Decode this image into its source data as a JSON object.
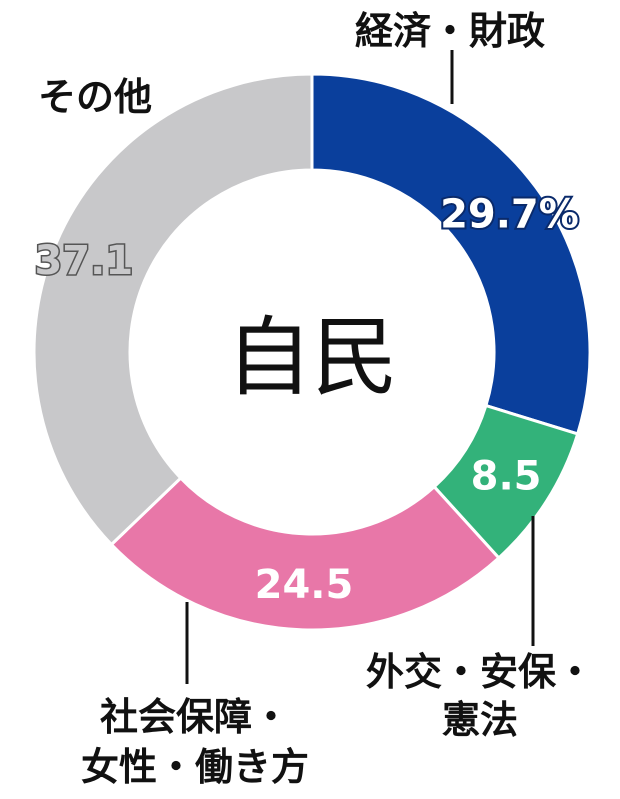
{
  "chart_data": {
    "type": "pie",
    "center_label": "自民",
    "unit": "%",
    "slices": [
      {
        "label": "経済・財政",
        "value": 29.7,
        "display": "29.7%",
        "color": "#0a3f9c",
        "label_text_color": "#ffffff"
      },
      {
        "label": "外交・安保・憲法",
        "value": 8.5,
        "display": "8.5",
        "color": "#33b27a",
        "label_text_color": "#ffffff"
      },
      {
        "label": "社会保障・女性・働き方",
        "value": 24.5,
        "display": "24.5",
        "color": "#e877a8",
        "label_text_color": "#ffffff"
      },
      {
        "label": "その他",
        "value": 37.1,
        "display": "37.1",
        "color": "#c8c8ca",
        "label_text_color": "#c8c8ca"
      }
    ],
    "category_label_lines": [
      [
        "経済・財政"
      ],
      [
        "外交・安保・",
        "憲法"
      ],
      [
        "社会保障・",
        "女性・働き方"
      ],
      [
        "その他"
      ]
    ],
    "outline_color_value_labels": true,
    "legend": "none"
  }
}
